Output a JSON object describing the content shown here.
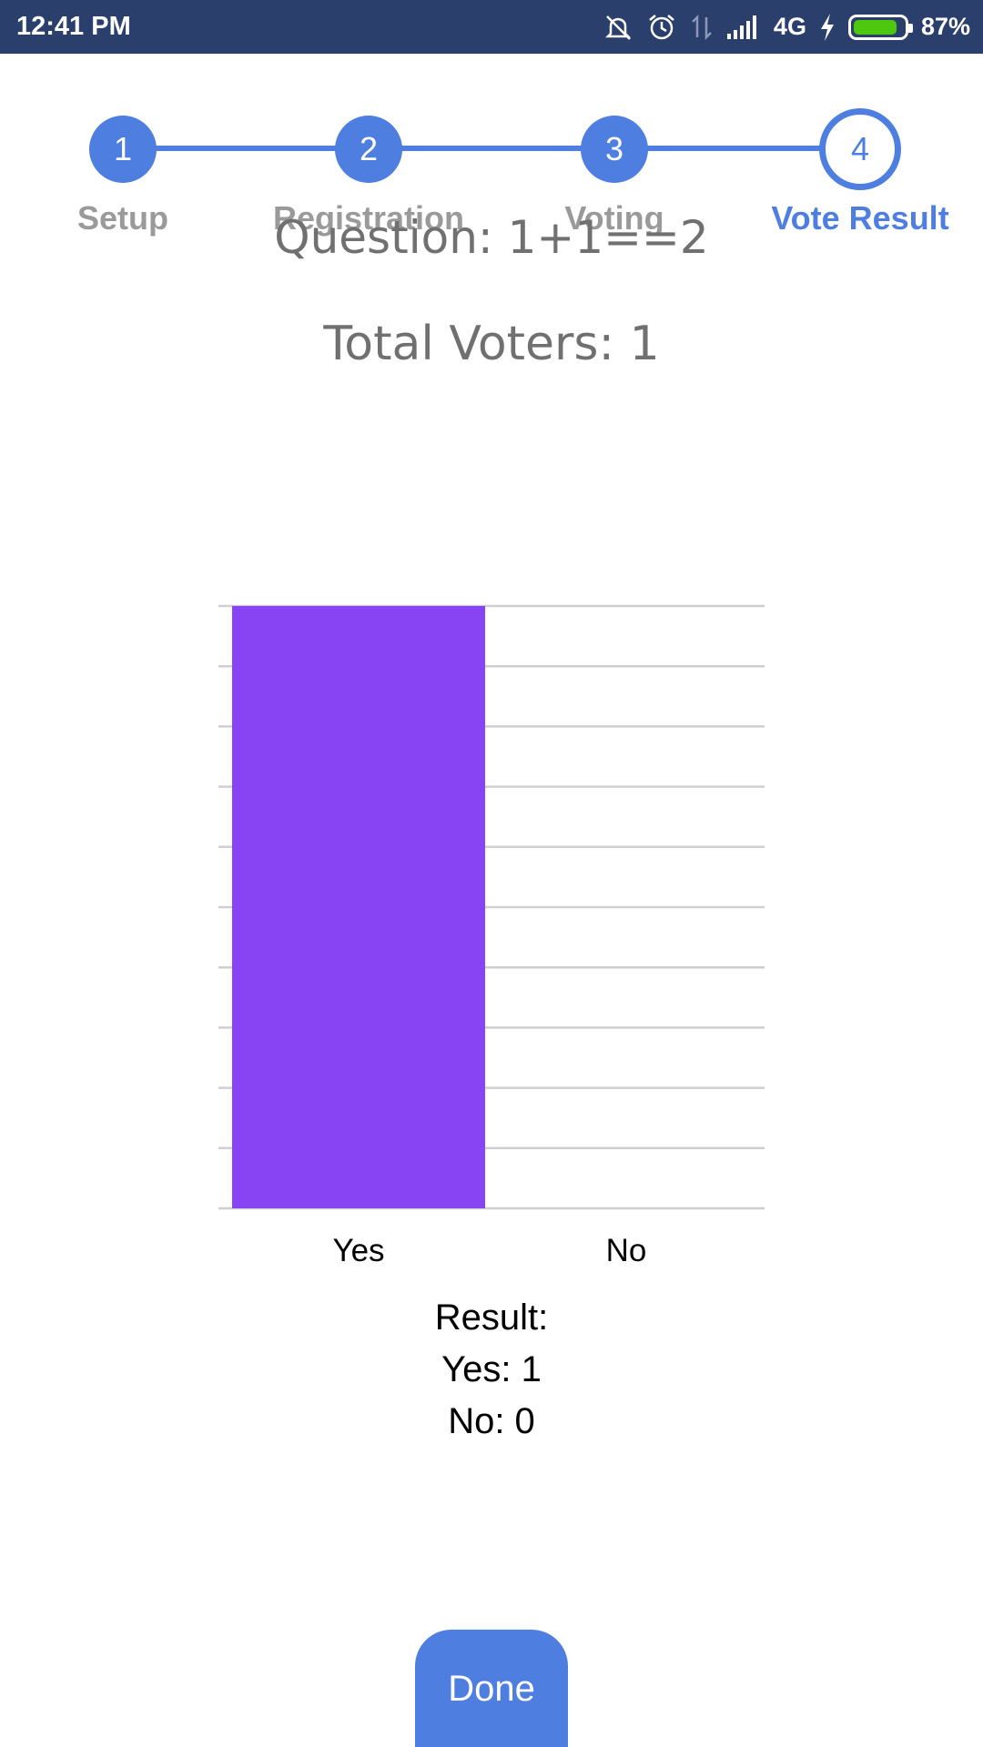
{
  "status_bar": {
    "time": "12:41 PM",
    "network": "4G",
    "battery_percent": "87%",
    "battery_level": 0.87,
    "icons": [
      "mute-icon",
      "alarm-icon",
      "data-arrows-icon",
      "signal-icon",
      "charging-icon",
      "battery-icon"
    ]
  },
  "stepper": {
    "steps": [
      {
        "number": "1",
        "label": "Setup"
      },
      {
        "number": "2",
        "label": "Registration"
      },
      {
        "number": "3",
        "label": "Voting"
      },
      {
        "number": "4",
        "label": "Vote Result"
      }
    ],
    "active_step": 4
  },
  "question": "Question: 1+1==2",
  "total_voters": "Total Voters: 1",
  "chart_data": {
    "type": "bar",
    "categories": [
      "Yes",
      "No"
    ],
    "values": [
      1,
      0
    ],
    "ylim": [
      0,
      1
    ],
    "gridlines": 10,
    "grid": true,
    "bar_color": "#8844f2"
  },
  "result": {
    "heading": "Result:",
    "yes": "Yes: 1",
    "no": "No: 0"
  },
  "done_label": "Done",
  "colors": {
    "primary": "#4e7ee0",
    "status_bar": "#2a3f6b",
    "bar": "#8844f2",
    "muted_text": "#707070"
  }
}
